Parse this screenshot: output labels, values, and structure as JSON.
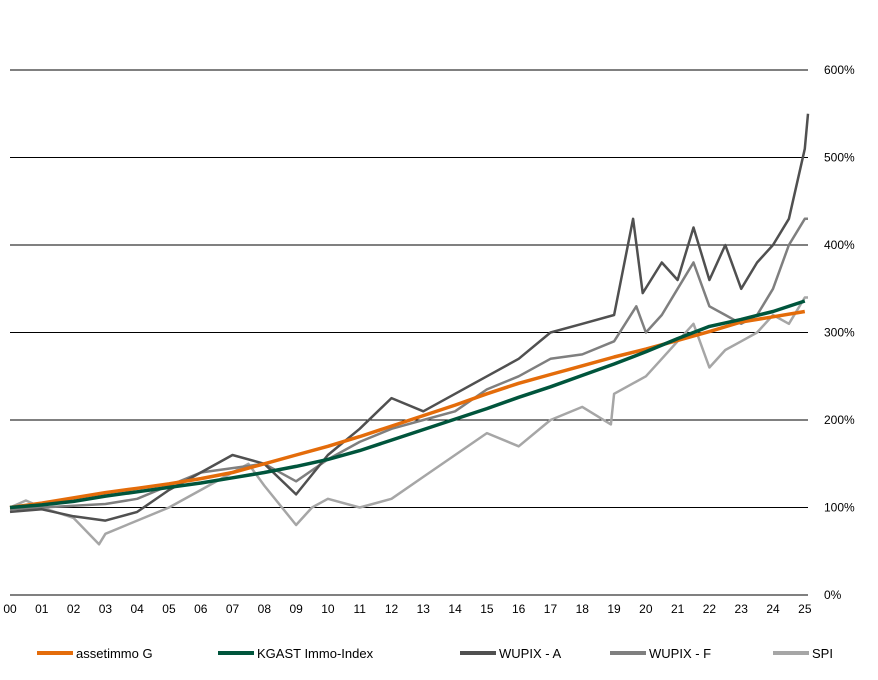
{
  "chart_data": {
    "type": "line",
    "title": "",
    "xlabel": "",
    "ylabel": "",
    "x_ticks": [
      "00",
      "01",
      "02",
      "03",
      "04",
      "05",
      "06",
      "07",
      "08",
      "09",
      "10",
      "11",
      "12",
      "13",
      "14",
      "15",
      "16",
      "17",
      "18",
      "19",
      "20",
      "21",
      "22",
      "23",
      "24",
      "25"
    ],
    "y_ticks": [
      "0%",
      "100%",
      "200%",
      "300%",
      "400%",
      "500%",
      "600%"
    ],
    "xlim": [
      2000,
      2025.1
    ],
    "ylim": [
      0,
      600
    ],
    "grid": "horizontal",
    "legend_position": "bottom",
    "series": [
      {
        "name": "assetimmo G",
        "color": "#e46c0a",
        "x": [
          2000,
          2001,
          2002,
          2003,
          2004,
          2005,
          2006,
          2007,
          2008,
          2009,
          2010,
          2011,
          2012,
          2013,
          2014,
          2015,
          2016,
          2017,
          2018,
          2019,
          2020,
          2021,
          2022,
          2023,
          2024,
          2025
        ],
        "values": [
          100,
          105,
          111,
          117,
          122,
          127,
          133,
          140,
          150,
          160,
          170,
          181,
          193,
          205,
          217,
          230,
          242,
          252,
          262,
          272,
          281,
          291,
          301,
          312,
          318,
          324
        ]
      },
      {
        "name": "KGAST Immo-Index",
        "color": "#00553c",
        "x": [
          2000,
          2001,
          2002,
          2003,
          2004,
          2005,
          2006,
          2007,
          2008,
          2009,
          2010,
          2011,
          2012,
          2013,
          2014,
          2015,
          2016,
          2017,
          2018,
          2019,
          2020,
          2021,
          2022,
          2023,
          2024,
          2025
        ],
        "values": [
          100,
          103,
          107,
          113,
          118,
          123,
          128,
          134,
          140,
          147,
          155,
          165,
          177,
          189,
          201,
          213,
          226,
          238,
          251,
          264,
          278,
          293,
          307,
          315,
          324,
          336
        ]
      },
      {
        "name": "WUPIX - A",
        "color": "#505050",
        "x": [
          2000,
          2001,
          2002,
          2003,
          2004,
          2005,
          2006,
          2007,
          2008,
          2009,
          2010,
          2011,
          2012,
          2013,
          2014,
          2015,
          2016,
          2017,
          2018,
          2019,
          2019.6,
          2019.9,
          2020.5,
          2021,
          2021.5,
          2022,
          2022.5,
          2023,
          2023.5,
          2024,
          2024.5,
          2025,
          2025.1
        ],
        "values": [
          95,
          98,
          90,
          85,
          95,
          120,
          140,
          160,
          150,
          115,
          160,
          190,
          225,
          210,
          230,
          250,
          270,
          300,
          310,
          320,
          430,
          345,
          380,
          360,
          420,
          360,
          400,
          350,
          380,
          400,
          430,
          510,
          550
        ]
      },
      {
        "name": "WUPIX - F",
        "color": "#7f7f7f",
        "x": [
          2000,
          2001,
          2002,
          2003,
          2004,
          2005,
          2006,
          2007,
          2008,
          2009,
          2010,
          2011,
          2012,
          2013,
          2014,
          2015,
          2016,
          2017,
          2018,
          2019,
          2019.7,
          2020,
          2020.5,
          2021,
          2021.5,
          2022,
          2022.5,
          2023,
          2023.5,
          2024,
          2024.5,
          2025,
          2025.1
        ],
        "values": [
          98,
          100,
          102,
          104,
          110,
          125,
          140,
          145,
          150,
          130,
          155,
          175,
          190,
          200,
          210,
          235,
          250,
          270,
          275,
          290,
          330,
          300,
          320,
          350,
          380,
          330,
          320,
          310,
          320,
          350,
          400,
          430,
          430
        ]
      },
      {
        "name": "SPI",
        "color": "#a6a6a6",
        "x": [
          2000,
          2000.5,
          2001,
          2002,
          2002.8,
          2003,
          2004,
          2005,
          2006,
          2007,
          2007.5,
          2008,
          2009,
          2009.5,
          2010,
          2011,
          2012,
          2013,
          2014,
          2015,
          2016,
          2017,
          2018,
          2018.9,
          2019,
          2020,
          2020.5,
          2021,
          2021.5,
          2022,
          2022.5,
          2023,
          2023.5,
          2024,
          2024.5,
          2025,
          2025.1
        ],
        "values": [
          100,
          108,
          100,
          88,
          58,
          70,
          85,
          100,
          120,
          140,
          150,
          125,
          80,
          100,
          110,
          100,
          110,
          135,
          160,
          185,
          170,
          200,
          215,
          195,
          230,
          250,
          270,
          290,
          310,
          260,
          280,
          290,
          300,
          320,
          310,
          340,
          340
        ]
      }
    ]
  }
}
